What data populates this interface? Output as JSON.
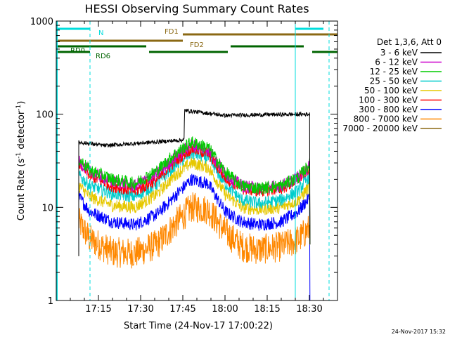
{
  "chart_data": {
    "type": "line",
    "title": "HESSI Observing Summary Count Rates",
    "xlabel": "Start Time (24-Nov-17 17:00:22)",
    "ylabel_main": "Count Rate (s",
    "ylabel_sup1": "-1",
    "ylabel_mid": " detector",
    "ylabel_sup2": "-1",
    "ylabel_end": ")",
    "y_scale": "log",
    "ylim": [
      1,
      1000
    ],
    "xlim_minutes": [
      0,
      100
    ],
    "x_ticks": [
      {
        "label": "17:15",
        "minute": 15
      },
      {
        "label": "17:30",
        "minute": 30
      },
      {
        "label": "17:45",
        "minute": 45
      },
      {
        "label": "18:00",
        "minute": 60
      },
      {
        "label": "18:15",
        "minute": 75
      },
      {
        "label": "18:30",
        "minute": 90
      }
    ],
    "y_ticks": [
      {
        "label": "1",
        "value": 1
      },
      {
        "label": "10",
        "value": 10
      },
      {
        "label": "100",
        "value": 100
      },
      {
        "label": "1000",
        "value": 1000
      }
    ],
    "legend_header": "Det 1,3,6, Att 0",
    "legend_placement": "right",
    "series": [
      {
        "name": "3 - 6 keV",
        "color": "#000000",
        "t": [
          8,
          17.5,
          17.6,
          45.5,
          45.6,
          60,
          75,
          90.2
        ],
        "values": [
          50,
          46,
          46,
          53,
          110,
          97,
          99,
          100
        ]
      },
      {
        "name": "6 - 12 keV",
        "color": "#cc00cc",
        "t": [
          8,
          12,
          20,
          28,
          36,
          42,
          48,
          54,
          60,
          66,
          72,
          80,
          86,
          90.2
        ],
        "values": [
          31,
          24,
          19,
          17,
          23,
          34,
          47,
          42,
          23,
          17,
          16,
          17,
          21,
          28
        ]
      },
      {
        "name": "12 - 25 keV",
        "color": "#00cc00",
        "t": [
          8,
          12,
          20,
          28,
          36,
          42,
          48,
          54,
          60,
          66,
          72,
          80,
          86,
          90.2
        ],
        "values": [
          33,
          25,
          20,
          18,
          25,
          37,
          50,
          44,
          24,
          17,
          16,
          17,
          21,
          29
        ]
      },
      {
        "name": "25 - 50 keV",
        "color": "#00cccc",
        "t": [
          8,
          12,
          20,
          28,
          36,
          42,
          48,
          54,
          60,
          66,
          72,
          80,
          86,
          90.2
        ],
        "values": [
          22,
          17,
          14,
          13,
          18,
          28,
          38,
          34,
          18,
          12,
          11,
          12,
          15,
          22
        ]
      },
      {
        "name": "50 - 100 keV",
        "color": "#e6c800",
        "t": [
          8,
          12,
          20,
          28,
          36,
          42,
          48,
          54,
          60,
          66,
          72,
          80,
          86,
          90.2
        ],
        "values": [
          17,
          13,
          10.5,
          10,
          14,
          22,
          30,
          27,
          14,
          10,
          9.5,
          10,
          12,
          17
        ]
      },
      {
        "name": "100 - 300 keV",
        "color": "#ff0000",
        "t": [
          8,
          12,
          20,
          28,
          36,
          42,
          48,
          54,
          60,
          66,
          72,
          80,
          86,
          90.2
        ],
        "values": [
          30,
          22,
          17,
          15,
          20,
          31,
          43,
          38,
          21,
          16,
          15,
          16,
          20,
          27
        ]
      },
      {
        "name": "300 - 800 keV",
        "color": "#0000ff",
        "t": [
          8,
          12,
          20,
          28,
          36,
          42,
          48,
          54,
          60,
          66,
          72,
          80,
          86,
          90.2
        ],
        "values": [
          13,
          9,
          7,
          6.5,
          8.5,
          13,
          20,
          18,
          9,
          7,
          6.5,
          7,
          9,
          13
        ]
      },
      {
        "name": "800 - 7000 keV",
        "color": "#ff8800",
        "t": [
          8,
          12,
          20,
          28,
          36,
          42,
          48,
          54,
          60,
          66,
          72,
          80,
          86,
          90.2
        ],
        "values": [
          7,
          4.5,
          3.3,
          3.2,
          4,
          6.5,
          10,
          9.5,
          5.5,
          3.8,
          3.5,
          3.8,
          4.5,
          6
        ]
      },
      {
        "name": "7000 - 20000 keV",
        "color": "#8b6914",
        "t": [],
        "values": []
      }
    ],
    "flags": [
      {
        "label": "N",
        "color": "#00dddd",
        "segments": [
          [
            0,
            12
          ]
        ]
      },
      {
        "label": "FD1",
        "color": "#8b6914",
        "segments": [
          [
            45,
            100
          ]
        ]
      },
      {
        "label": "FD2",
        "color": "#8b6914",
        "segments": [
          [
            0,
            45
          ]
        ]
      },
      {
        "label": "RD0",
        "color": "#006400",
        "segments": [
          [
            0,
            32
          ],
          [
            62,
            88
          ]
        ]
      },
      {
        "label": "RD6",
        "color": "#006400",
        "segments": [
          [
            0,
            12
          ],
          [
            33,
            61
          ],
          [
            91,
            100
          ]
        ]
      }
    ],
    "vlines": [
      {
        "minute": 12,
        "color": "#00dddd",
        "style": "dashed"
      },
      {
        "minute": 85,
        "color": "#00dddd",
        "style": "solid"
      },
      {
        "minute": 97,
        "color": "#00dddd",
        "style": "dashed"
      }
    ],
    "timestamp": "24-Nov-2017 15:32"
  }
}
